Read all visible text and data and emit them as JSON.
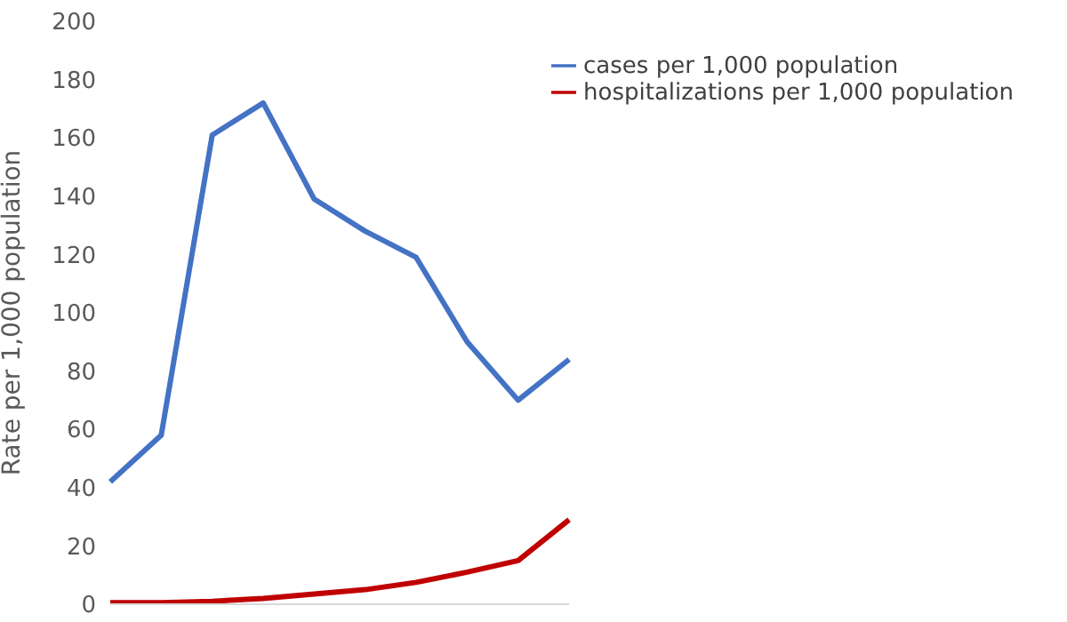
{
  "chart_data": {
    "type": "line",
    "ylabel": "Rate per 1,000 population",
    "categories": [
      null,
      null,
      null,
      null,
      null,
      null,
      null,
      null,
      null,
      null
    ],
    "series": [
      {
        "name": "cases per 1,000 population",
        "color": "#4472c4",
        "values": [
          42,
          58,
          161,
          172,
          139,
          128,
          119,
          90,
          70,
          84
        ]
      },
      {
        "name": "hospitalizations per 1,000 population",
        "color": "#c00000",
        "values": [
          0.5,
          0.5,
          1,
          2,
          3.5,
          5,
          7.5,
          11,
          15,
          29
        ]
      }
    ],
    "ylim": [
      0,
      200
    ],
    "yticks": [
      0,
      20,
      40,
      60,
      80,
      100,
      120,
      140,
      160,
      180,
      200
    ],
    "grid": false,
    "legend": "top right",
    "tick_labels": "y",
    "marker": "none",
    "line_style": "solid"
  }
}
